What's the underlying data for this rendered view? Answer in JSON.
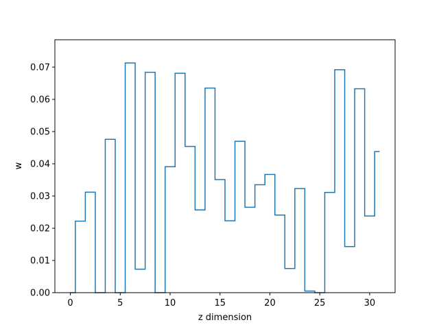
{
  "chart_data": {
    "type": "line",
    "drawstyle": "steps-mid",
    "title": "",
    "xlabel": "z dimension",
    "ylabel": "w",
    "xlim": [
      -1.55,
      32.55
    ],
    "ylim": [
      0.0,
      0.0785
    ],
    "xticks": [
      0,
      5,
      10,
      15,
      20,
      25,
      30
    ],
    "yticks": [
      0.0,
      0.01,
      0.02,
      0.03,
      0.04,
      0.05,
      0.06,
      0.07
    ],
    "ytick_labels": [
      "0.00",
      "0.01",
      "0.02",
      "0.03",
      "0.04",
      "0.05",
      "0.06",
      "0.07"
    ],
    "grid": false,
    "series": [
      {
        "color": "#1f77b4",
        "x": [
          0,
          1,
          2,
          3,
          4,
          5,
          6,
          7,
          8,
          9,
          10,
          11,
          12,
          13,
          14,
          15,
          16,
          17,
          18,
          19,
          20,
          21,
          22,
          23,
          24,
          25,
          26,
          27,
          28,
          29,
          30,
          31
        ],
        "y": [
          0.0,
          0.0222,
          0.0312,
          0.0,
          0.0476,
          0.0,
          0.0713,
          0.0073,
          0.0684,
          0.0,
          0.0391,
          0.0681,
          0.0454,
          0.0257,
          0.0635,
          0.0351,
          0.0223,
          0.047,
          0.0265,
          0.0335,
          0.0367,
          0.0241,
          0.0075,
          0.0323,
          0.0005,
          0.0,
          0.0311,
          0.0692,
          0.0143,
          0.0633,
          0.0238,
          0.0438
        ]
      }
    ]
  }
}
